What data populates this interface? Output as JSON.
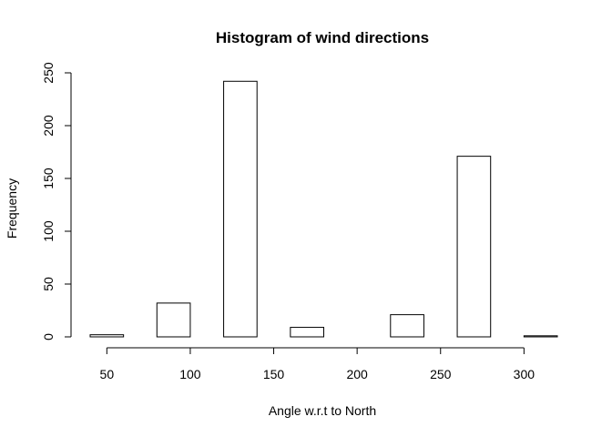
{
  "chart_data": {
    "type": "bar",
    "title": "Histogram of wind directions",
    "xlabel": "Angle w.r.t to North",
    "ylabel": "Frequency",
    "bins": [
      {
        "start": 40,
        "end": 60,
        "count": 2
      },
      {
        "start": 60,
        "end": 80,
        "count": 0
      },
      {
        "start": 80,
        "end": 100,
        "count": 32
      },
      {
        "start": 100,
        "end": 120,
        "count": 0
      },
      {
        "start": 120,
        "end": 140,
        "count": 242
      },
      {
        "start": 140,
        "end": 160,
        "count": 0
      },
      {
        "start": 160,
        "end": 180,
        "count": 9
      },
      {
        "start": 180,
        "end": 200,
        "count": 0
      },
      {
        "start": 200,
        "end": 220,
        "count": 0
      },
      {
        "start": 220,
        "end": 240,
        "count": 21
      },
      {
        "start": 240,
        "end": 260,
        "count": 0
      },
      {
        "start": 260,
        "end": 280,
        "count": 171
      },
      {
        "start": 280,
        "end": 300,
        "count": 0
      },
      {
        "start": 300,
        "end": 320,
        "count": 1
      }
    ],
    "x_ticks": [
      50,
      100,
      150,
      200,
      250,
      300
    ],
    "y_ticks": [
      0,
      50,
      100,
      150,
      200,
      250
    ],
    "xlim": [
      40,
      320
    ],
    "ylim": [
      0,
      250
    ],
    "grid": false,
    "bar_fill": "#ffffff",
    "bar_stroke": "#000000"
  }
}
